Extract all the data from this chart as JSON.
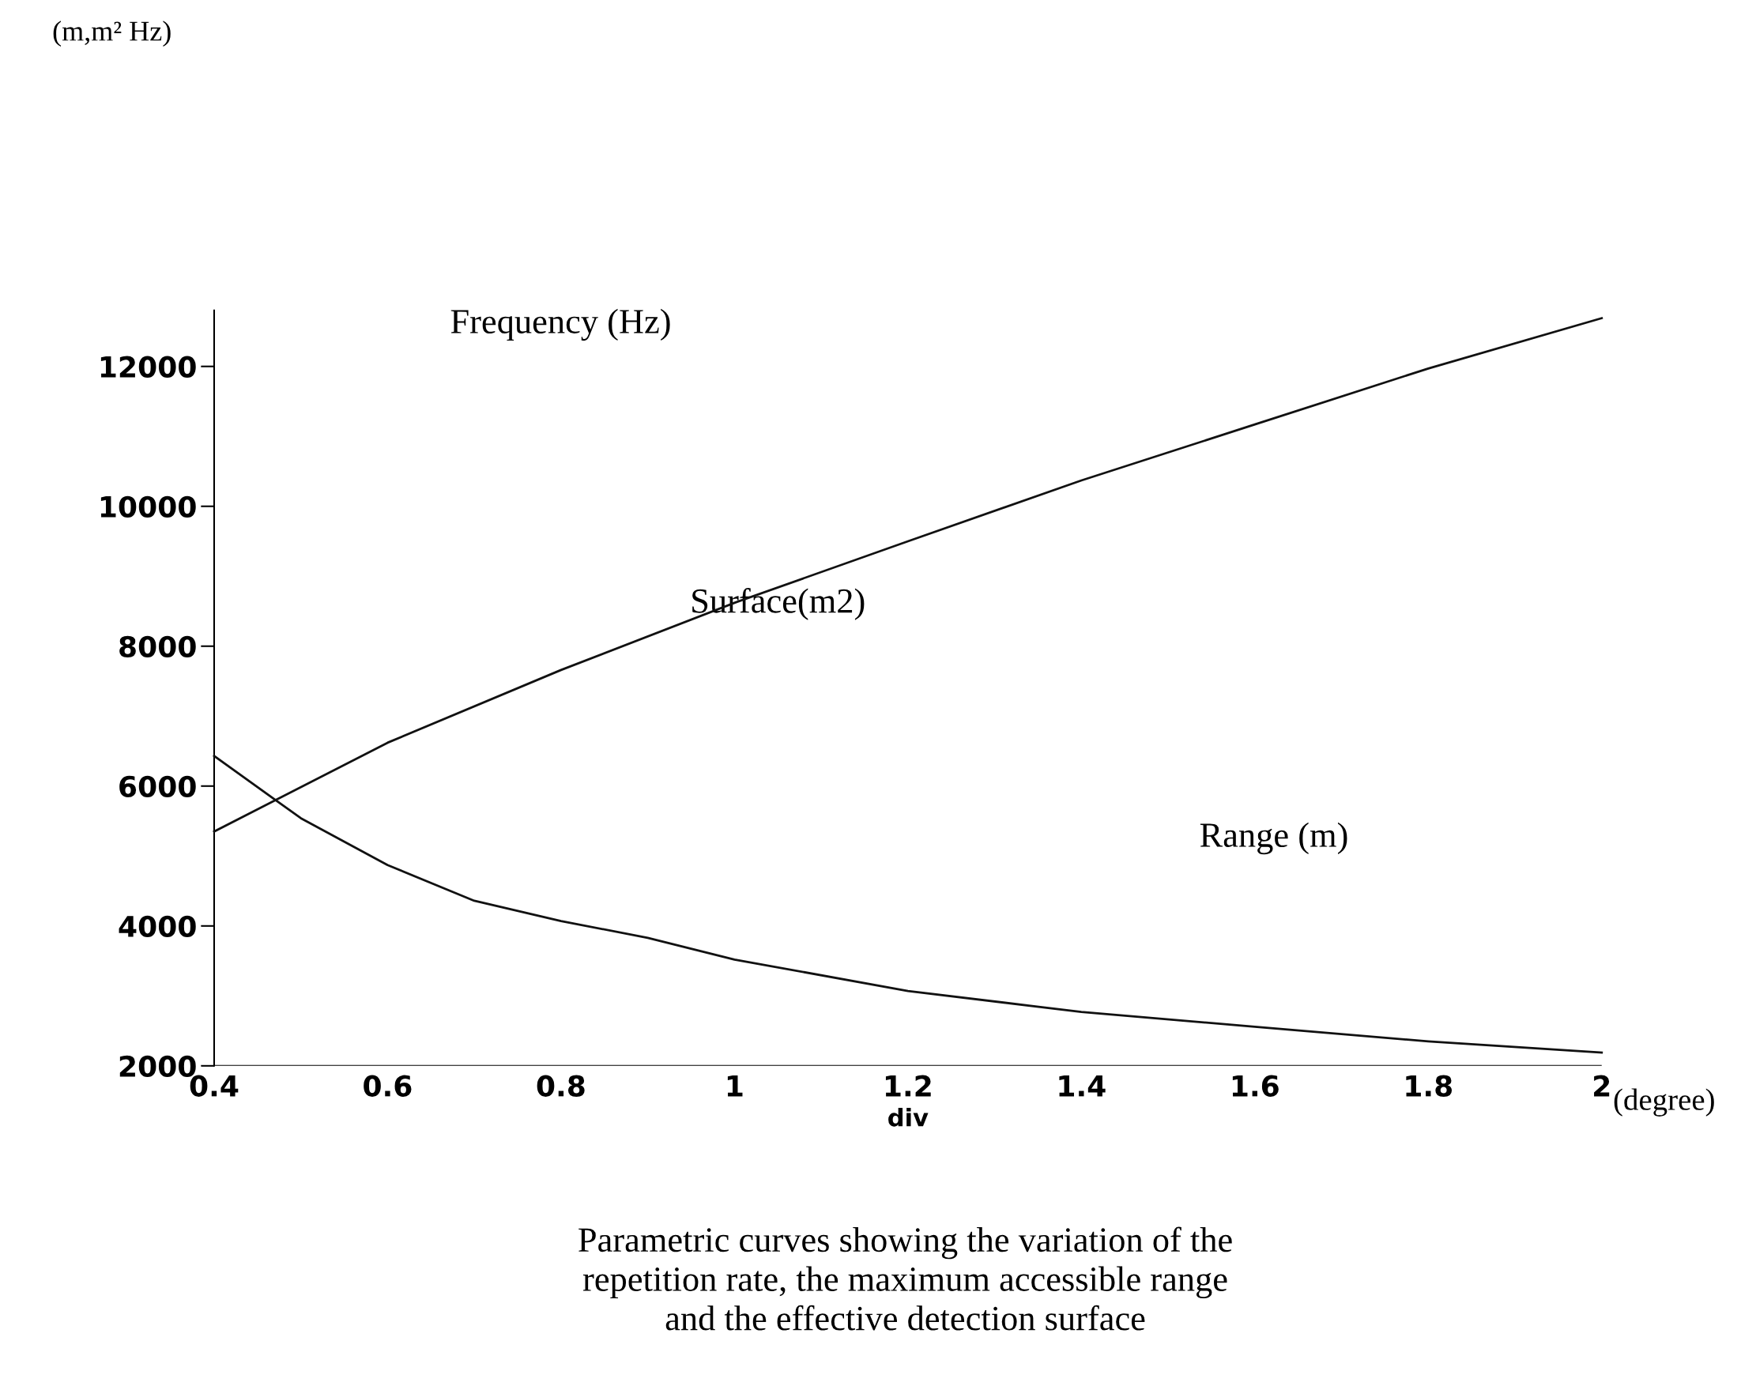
{
  "chart_data": {
    "type": "line",
    "xlabel": "(degree)",
    "xlim": [
      0.4,
      2
    ],
    "xticks": [
      {
        "value": 0.4,
        "label": "0.4"
      },
      {
        "value": 0.6,
        "label": "0.6"
      },
      {
        "value": 0.8,
        "label": "0.8"
      },
      {
        "value": 1,
        "label": "1"
      },
      {
        "value": 1.2,
        "label": "1.2"
      },
      {
        "value": 1.4,
        "label": "1.4"
      },
      {
        "value": 1.6,
        "label": "1.6"
      },
      {
        "value": 1.8,
        "label": "1.8"
      },
      {
        "value": 2,
        "label": "2"
      }
    ],
    "ylim": [
      2000,
      12800
    ],
    "yticks": [
      2000,
      4000,
      6000,
      8000,
      10000,
      12000
    ],
    "grid": false,
    "series": [
      {
        "color": "#111111",
        "x": [
          0.4,
          0.6,
          0.8,
          1.0,
          1.2,
          1.4,
          1.6,
          1.8,
          2.0
        ],
        "values": [
          5350,
          6620,
          7660,
          8620,
          9500,
          10370,
          11170,
          11970,
          12690
        ]
      },
      {
        "color": "#111111",
        "x": [
          0.4,
          0.5,
          0.6,
          0.7,
          0.8,
          0.9,
          1.0,
          1.2,
          1.4,
          1.6,
          1.8,
          2.0
        ],
        "values": [
          6430,
          5540,
          4870,
          4360,
          4070,
          3830,
          3520,
          3070,
          2770,
          2560,
          2350,
          2190
        ]
      }
    ],
    "annotations": [
      "(m,m² Hz)",
      "Frequency (Hz)",
      "Surface(m2)",
      "Range (m)",
      "div",
      "Parametric curves showing the variation of the\nrepetition rate, the maximum accessible range\nand the effective detection surface"
    ]
  }
}
